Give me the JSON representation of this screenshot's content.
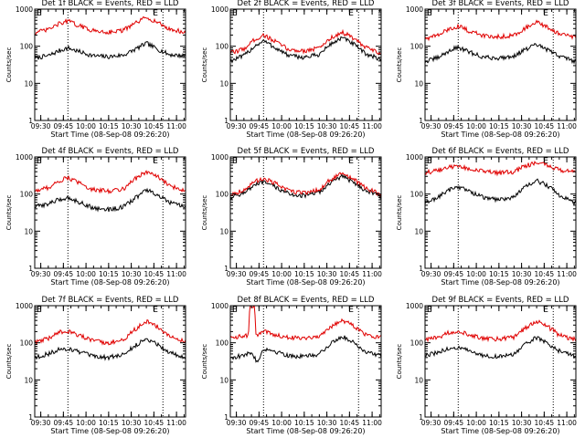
{
  "figure": {
    "ylabel": "Counts/sec",
    "xlabel": "Start Time (08-Sep-08 09:26:20)",
    "x_tick_labels": [
      "09:30",
      "09:45",
      "10:00",
      "10:15",
      "10:30",
      "10:45",
      "11:00"
    ],
    "y_tick_labels": [
      "1",
      "10",
      "100",
      "1000"
    ],
    "marker_left": "E",
    "marker_right": "E",
    "colors": {
      "events": "#000000",
      "lld": "#e00000",
      "axes": "#000000",
      "background": "#ffffff"
    }
  },
  "chart_data": [
    {
      "type": "line",
      "title": "Det 1f BLACK = Events, RED = LLD",
      "xlabel": "Start Time (08-Sep-08 09:26:20)",
      "ylabel": "Counts/sec",
      "x_range": [
        "09:26",
        "11:06"
      ],
      "ylim": [
        1,
        1000
      ],
      "y_scale": "log",
      "vlines": [
        "09:48",
        "10:51"
      ],
      "series": [
        {
          "color": "#000000",
          "x": [
            "09:26",
            "09:35",
            "09:42",
            "09:48",
            "09:55",
            "10:05",
            "10:15",
            "10:25",
            "10:32",
            "10:40",
            "10:47",
            "10:55",
            "11:05"
          ],
          "values": [
            48,
            55,
            75,
            90,
            72,
            55,
            52,
            58,
            80,
            120,
            85,
            60,
            55
          ]
        },
        {
          "color": "#e00000",
          "x": [
            "09:26",
            "09:35",
            "09:42",
            "09:48",
            "09:55",
            "10:05",
            "10:15",
            "10:25",
            "10:32",
            "10:40",
            "10:47",
            "10:55",
            "11:05"
          ],
          "values": [
            230,
            280,
            400,
            480,
            360,
            260,
            240,
            270,
            400,
            600,
            450,
            290,
            240
          ]
        }
      ]
    },
    {
      "type": "line",
      "title": "Det 2f BLACK = Events, RED = LLD",
      "xlabel": "Start Time (08-Sep-08 09:26:20)",
      "ylabel": "Counts/sec",
      "x_range": [
        "09:26",
        "11:06"
      ],
      "ylim": [
        1,
        1000
      ],
      "y_scale": "log",
      "vlines": [
        "09:48",
        "10:51"
      ],
      "series": [
        {
          "color": "#000000",
          "x": [
            "09:26",
            "09:35",
            "09:42",
            "09:48",
            "09:55",
            "10:05",
            "10:15",
            "10:25",
            "10:32",
            "10:40",
            "10:47",
            "10:55",
            "11:05"
          ],
          "values": [
            40,
            55,
            100,
            140,
            95,
            55,
            50,
            60,
            110,
            170,
            120,
            65,
            45
          ]
        },
        {
          "color": "#e00000",
          "x": [
            "09:26",
            "09:35",
            "09:42",
            "09:48",
            "09:55",
            "10:05",
            "10:15",
            "10:25",
            "10:32",
            "10:40",
            "10:47",
            "10:55",
            "11:05"
          ],
          "values": [
            65,
            85,
            150,
            200,
            140,
            80,
            75,
            90,
            160,
            240,
            170,
            95,
            65
          ]
        }
      ]
    },
    {
      "type": "line",
      "title": "Det 3f BLACK = Events, RED = LLD",
      "xlabel": "Start Time (08-Sep-08 09:26:20)",
      "ylabel": "Counts/sec",
      "x_range": [
        "09:26",
        "11:06"
      ],
      "ylim": [
        1,
        1000
      ],
      "y_scale": "log",
      "vlines": [
        "09:48",
        "10:51"
      ],
      "series": [
        {
          "color": "#000000",
          "x": [
            "09:26",
            "09:35",
            "09:42",
            "09:48",
            "09:55",
            "10:05",
            "10:15",
            "10:25",
            "10:32",
            "10:40",
            "10:47",
            "10:55",
            "11:05"
          ],
          "values": [
            38,
            50,
            75,
            95,
            70,
            50,
            48,
            55,
            80,
            110,
            80,
            55,
            40
          ]
        },
        {
          "color": "#e00000",
          "x": [
            "09:26",
            "09:35",
            "09:42",
            "09:48",
            "09:55",
            "10:05",
            "10:15",
            "10:25",
            "10:32",
            "10:40",
            "10:47",
            "10:55",
            "11:05"
          ],
          "values": [
            160,
            200,
            290,
            350,
            260,
            190,
            180,
            200,
            300,
            440,
            320,
            220,
            170
          ]
        }
      ]
    },
    {
      "type": "line",
      "title": "Det 4f BLACK = Events, RED = LLD",
      "xlabel": "Start Time (08-Sep-08 09:26:20)",
      "ylabel": "Counts/sec",
      "x_range": [
        "09:26",
        "11:06"
      ],
      "ylim": [
        1,
        1000
      ],
      "y_scale": "log",
      "vlines": [
        "09:48",
        "10:51"
      ],
      "series": [
        {
          "color": "#000000",
          "x": [
            "09:26",
            "09:35",
            "09:42",
            "09:48",
            "09:55",
            "10:05",
            "10:15",
            "10:25",
            "10:32",
            "10:40",
            "10:47",
            "10:55",
            "11:05"
          ],
          "values": [
            45,
            55,
            70,
            80,
            62,
            42,
            38,
            45,
            75,
            130,
            95,
            60,
            45
          ]
        },
        {
          "color": "#e00000",
          "x": [
            "09:26",
            "09:35",
            "09:42",
            "09:48",
            "09:55",
            "10:05",
            "10:15",
            "10:25",
            "10:32",
            "10:40",
            "10:47",
            "10:55",
            "11:05"
          ],
          "values": [
            120,
            150,
            220,
            280,
            200,
            130,
            120,
            140,
            250,
            400,
            300,
            170,
            125
          ]
        }
      ]
    },
    {
      "type": "line",
      "title": "Det 5f BLACK = Events, RED = LLD",
      "xlabel": "Start Time (08-Sep-08 09:26:20)",
      "ylabel": "Counts/sec",
      "x_range": [
        "09:26",
        "11:06"
      ],
      "ylim": [
        1,
        1000
      ],
      "y_scale": "log",
      "vlines": [
        "09:48",
        "10:51"
      ],
      "series": [
        {
          "color": "#000000",
          "x": [
            "09:26",
            "09:35",
            "09:42",
            "09:48",
            "09:55",
            "10:05",
            "10:15",
            "10:25",
            "10:32",
            "10:40",
            "10:47",
            "10:55",
            "11:05"
          ],
          "values": [
            80,
            110,
            170,
            210,
            160,
            100,
            90,
            110,
            200,
            300,
            220,
            130,
            90
          ]
        },
        {
          "color": "#e00000",
          "x": [
            "09:26",
            "09:35",
            "09:42",
            "09:48",
            "09:55",
            "10:05",
            "10:15",
            "10:25",
            "10:32",
            "10:40",
            "10:47",
            "10:55",
            "11:05"
          ],
          "values": [
            95,
            130,
            210,
            270,
            200,
            120,
            110,
            130,
            240,
            360,
            260,
            150,
            100
          ]
        }
      ]
    },
    {
      "type": "line",
      "title": "Det 6f BLACK = Events, RED = LLD",
      "xlabel": "Start Time (08-Sep-08 09:26:20)",
      "ylabel": "Counts/sec",
      "x_range": [
        "09:26",
        "11:06"
      ],
      "ylim": [
        1,
        1000
      ],
      "y_scale": "log",
      "vlines": [
        "09:48",
        "10:51"
      ],
      "series": [
        {
          "color": "#000000",
          "x": [
            "09:26",
            "09:35",
            "09:42",
            "09:48",
            "09:55",
            "10:05",
            "10:15",
            "10:25",
            "10:32",
            "10:40",
            "10:47",
            "10:55",
            "11:05"
          ],
          "values": [
            55,
            85,
            130,
            160,
            120,
            80,
            70,
            85,
            150,
            230,
            170,
            95,
            60
          ]
        },
        {
          "color": "#e00000",
          "x": [
            "09:26",
            "09:35",
            "09:42",
            "09:48",
            "09:55",
            "10:05",
            "10:15",
            "10:25",
            "10:32",
            "10:40",
            "10:47",
            "10:55",
            "11:05"
          ],
          "values": [
            380,
            430,
            520,
            580,
            480,
            400,
            370,
            400,
            560,
            720,
            600,
            450,
            380
          ]
        }
      ]
    },
    {
      "type": "line",
      "title": "Det 7f BLACK = Events, RED = LLD",
      "xlabel": "Start Time (08-Sep-08 09:26:20)",
      "ylabel": "Counts/sec",
      "x_range": [
        "09:26",
        "11:06"
      ],
      "ylim": [
        1,
        1000
      ],
      "y_scale": "log",
      "vlines": [
        "09:48",
        "10:51"
      ],
      "series": [
        {
          "color": "#000000",
          "x": [
            "09:26",
            "09:35",
            "09:42",
            "09:48",
            "09:55",
            "10:05",
            "10:15",
            "10:25",
            "10:32",
            "10:40",
            "10:47",
            "10:55",
            "11:05"
          ],
          "values": [
            40,
            50,
            65,
            70,
            58,
            42,
            40,
            48,
            80,
            130,
            95,
            55,
            42
          ]
        },
        {
          "color": "#e00000",
          "x": [
            "09:26",
            "09:35",
            "09:42",
            "09:48",
            "09:55",
            "10:05",
            "10:15",
            "10:25",
            "10:32",
            "10:40",
            "10:47",
            "10:55",
            "11:05"
          ],
          "values": [
            100,
            130,
            190,
            210,
            160,
            110,
            100,
            120,
            220,
            380,
            280,
            150,
            110
          ]
        }
      ]
    },
    {
      "type": "line",
      "title": "Det 8f BLACK = Events, RED = LLD",
      "xlabel": "Start Time (08-Sep-08 09:26:20)",
      "ylabel": "Counts/sec",
      "x_range": [
        "09:26",
        "11:06"
      ],
      "ylim": [
        1,
        1000
      ],
      "y_scale": "log",
      "vlines": [
        "09:48",
        "10:51"
      ],
      "series": [
        {
          "color": "#000000",
          "x": [
            "09:26",
            "09:35",
            "09:40",
            "09:44",
            "09:48",
            "09:55",
            "10:05",
            "10:15",
            "10:25",
            "10:32",
            "10:40",
            "10:47",
            "10:55",
            "11:05"
          ],
          "values": [
            40,
            45,
            55,
            30,
            70,
            60,
            45,
            42,
            50,
            90,
            150,
            110,
            60,
            45
          ]
        },
        {
          "color": "#e00000",
          "x": [
            "09:26",
            "09:35",
            "09:38",
            "09:39",
            "09:42",
            "09:43",
            "09:48",
            "09:55",
            "10:05",
            "10:15",
            "10:25",
            "10:32",
            "10:40",
            "10:47",
            "10:55",
            "11:05"
          ],
          "values": [
            140,
            150,
            160,
            1000,
            1000,
            160,
            200,
            170,
            140,
            135,
            150,
            260,
            400,
            310,
            170,
            140
          ]
        }
      ]
    },
    {
      "type": "line",
      "title": "Det 9f BLACK = Events, RED = LLD",
      "xlabel": "Start Time (08-Sep-08 09:26:20)",
      "ylabel": "Counts/sec",
      "x_range": [
        "09:26",
        "11:06"
      ],
      "ylim": [
        1,
        1000
      ],
      "y_scale": "log",
      "vlines": [
        "09:48",
        "10:51"
      ],
      "series": [
        {
          "color": "#000000",
          "x": [
            "09:26",
            "09:35",
            "09:42",
            "09:48",
            "09:55",
            "10:05",
            "10:15",
            "10:25",
            "10:32",
            "10:40",
            "10:47",
            "10:55",
            "11:05"
          ],
          "values": [
            45,
            55,
            70,
            75,
            60,
            45,
            42,
            50,
            85,
            140,
            100,
            60,
            45
          ]
        },
        {
          "color": "#e00000",
          "x": [
            "09:26",
            "09:35",
            "09:42",
            "09:48",
            "09:55",
            "10:05",
            "10:15",
            "10:25",
            "10:32",
            "10:40",
            "10:47",
            "10:55",
            "11:05"
          ],
          "values": [
            120,
            140,
            190,
            210,
            170,
            130,
            125,
            140,
            240,
            380,
            280,
            160,
            125
          ]
        }
      ]
    }
  ]
}
